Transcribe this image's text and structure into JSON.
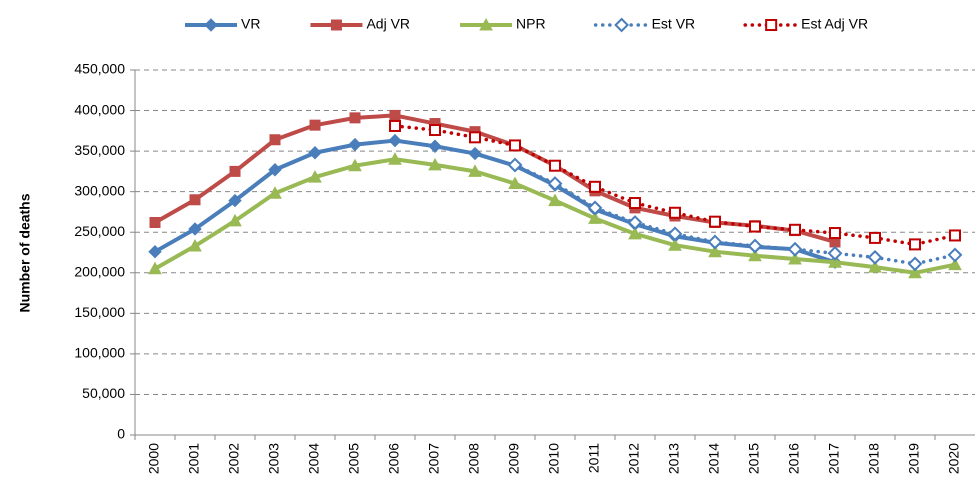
{
  "chart_data": {
    "type": "line",
    "y_label": "Number of deaths",
    "categories": [
      "2000",
      "2001",
      "2002",
      "2003",
      "2004",
      "2005",
      "2006",
      "2007",
      "2008",
      "2009",
      "2010",
      "2011",
      "2012",
      "2013",
      "2014",
      "2015",
      "2016",
      "2017",
      "2018",
      "2019",
      "2020"
    ],
    "series": [
      {
        "name": "VR",
        "color": "#4a7ebb",
        "marker": "diamond",
        "line_style": "solid",
        "values": [
          226000,
          254000,
          289000,
          327000,
          348000,
          358000,
          363000,
          356000,
          347000,
          332000,
          308000,
          278000,
          260000,
          245000,
          237000,
          232000,
          229000,
          213000,
          null,
          null,
          null
        ]
      },
      {
        "name": "Adj VR",
        "color": "#be4b48",
        "marker": "square",
        "line_style": "solid",
        "values": [
          262000,
          290000,
          325000,
          364000,
          382000,
          391000,
          394000,
          384000,
          374000,
          357000,
          332000,
          301000,
          280000,
          270000,
          262000,
          258000,
          252000,
          238000,
          null,
          null,
          null
        ]
      },
      {
        "name": "NPR",
        "color": "#98b954",
        "marker": "triangle",
        "line_style": "solid",
        "values": [
          205000,
          233000,
          264000,
          298000,
          318000,
          332000,
          340000,
          333000,
          325000,
          310000,
          289000,
          267000,
          248000,
          234000,
          226000,
          221000,
          217000,
          213000,
          207000,
          200000,
          210000
        ]
      },
      {
        "name": "Est VR",
        "color": "#4a7ebb",
        "marker": "open-diamond",
        "line_style": "dotted",
        "values": [
          null,
          null,
          null,
          null,
          null,
          null,
          null,
          null,
          null,
          333000,
          310000,
          280000,
          262000,
          248000,
          238000,
          233000,
          229000,
          224000,
          219000,
          211000,
          222000
        ]
      },
      {
        "name": "Est Adj VR",
        "color": "#c00000",
        "marker": "open-square",
        "line_style": "dotted",
        "values": [
          null,
          null,
          null,
          null,
          null,
          null,
          381000,
          376000,
          367000,
          357000,
          332000,
          306000,
          286000,
          274000,
          263000,
          257000,
          253000,
          249000,
          243000,
          235000,
          246000
        ]
      }
    ],
    "ylim": [
      0,
      450000
    ],
    "yticks": [
      0,
      {
        "value": 50000,
        "label": "50,000"
      },
      {
        "value": 100000,
        "label": "100,000"
      },
      {
        "value": 150000,
        "label": "150,000"
      },
      {
        "value": 200000,
        "label": "200,000"
      },
      {
        "value": 250000,
        "label": "250,000"
      },
      {
        "value": 300000,
        "label": "300,000"
      },
      {
        "value": 350000,
        "label": "350,000"
      },
      {
        "value": 400000,
        "label": "400,000"
      },
      {
        "value": 450000,
        "label": "450,000"
      }
    ],
    "grid": true,
    "legend": "top"
  }
}
